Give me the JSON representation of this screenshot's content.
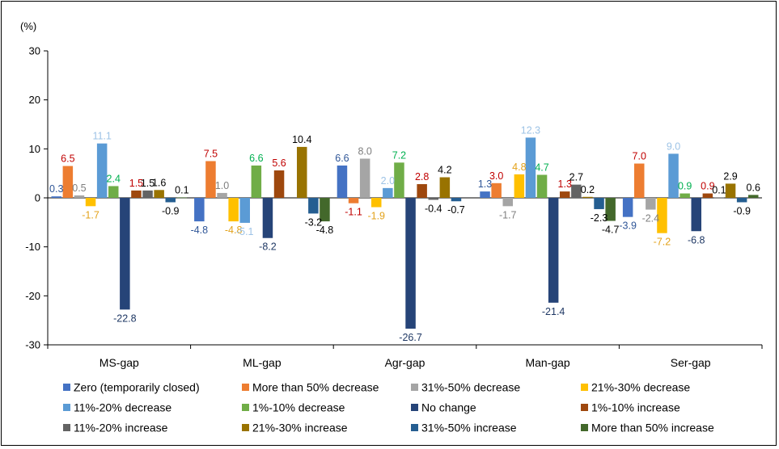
{
  "chart_data": {
    "type": "bar",
    "unit_label": "(%)",
    "ylim": [
      -30,
      30
    ],
    "yticks": [
      30,
      20,
      10,
      0,
      -10,
      -20,
      -30
    ],
    "grid": false,
    "legend_position": "bottom",
    "categories": [
      "MS-gap",
      "ML-gap",
      "Agr-gap",
      "Man-gap",
      "Ser-gap"
    ],
    "series": [
      {
        "name": "Zero (temporarily closed)",
        "color": "#4472C4",
        "values": [
          0.3,
          -4.8,
          6.6,
          1.3,
          -3.9
        ]
      },
      {
        "name": "More than 50% decrease",
        "color": "#ED7D31",
        "values": [
          6.5,
          7.5,
          -1.1,
          3.0,
          7.0
        ]
      },
      {
        "name": "31%-50% decrease",
        "color": "#A5A5A5",
        "values": [
          0.5,
          1.0,
          8.0,
          -1.7,
          -2.4
        ]
      },
      {
        "name": "21%-30% decrease",
        "color": "#FFC000",
        "values": [
          -1.7,
          -4.8,
          -1.9,
          4.8,
          -7.2
        ]
      },
      {
        "name": "11%-20% decrease",
        "color": "#5B9BD5",
        "values": [
          11.1,
          -5.1,
          2.0,
          12.3,
          9.0
        ]
      },
      {
        "name": "1%-10% decrease",
        "color": "#70AD47",
        "values": [
          2.4,
          6.6,
          7.2,
          4.7,
          0.9
        ]
      },
      {
        "name": "No change",
        "color": "#264478",
        "values": [
          -22.8,
          -8.2,
          -26.7,
          -21.4,
          -6.8
        ]
      },
      {
        "name": "1%-10% increase",
        "color": "#9E480E",
        "values": [
          1.5,
          5.6,
          2.8,
          1.3,
          0.9
        ]
      },
      {
        "name": "11%-20% increase",
        "color": "#636363",
        "values": [
          1.5,
          0.0,
          -0.4,
          2.7,
          0.1
        ]
      },
      {
        "name": "21%-30% increase",
        "color": "#997300",
        "values": [
          1.6,
          10.4,
          4.2,
          0.2,
          2.9
        ]
      },
      {
        "name": "31%-50% increase",
        "color": "#255E91",
        "values": [
          -0.9,
          -3.2,
          -0.7,
          -2.3,
          -0.9
        ]
      },
      {
        "name": "More than 50% increase",
        "color": "#43682B",
        "values": [
          0.1,
          -4.8,
          null,
          -4.7,
          0.6
        ]
      }
    ],
    "data_labels": [
      [
        "0.3",
        "6.5",
        "0.5",
        "-1.7",
        "11.1",
        "2.4",
        "-22.8",
        "1.5",
        "1.5",
        "1.6",
        "-0.9",
        "0.1"
      ],
      [
        "-4.8",
        "7.5",
        "1.0",
        "-4.8",
        "-5.1",
        "6.6",
        "-8.2",
        "5.6",
        "",
        "10.4",
        "-3.2",
        "-4.8"
      ],
      [
        "6.6",
        "-1.1",
        "8.0",
        "-1.9",
        "2.0",
        "7.2",
        "-26.7",
        "2.8",
        "-0.4",
        "4.2",
        "-0.7",
        ""
      ],
      [
        "1.3",
        "3.0",
        "-1.7",
        "4.8",
        "12.3",
        "4.7",
        "-21.4",
        "1.3",
        "2.7",
        "0.2",
        "-2.3",
        "-4.7"
      ],
      [
        "-3.9",
        "7.0",
        "-2.4",
        "-7.2",
        "9.0",
        "0.9",
        "-6.8",
        "0.9",
        "0.1",
        "2.9",
        "-0.9",
        "0.6"
      ]
    ],
    "label_colors": [
      "#2E5597",
      "#C00000",
      "#7F7F7F",
      "#E3A21A",
      "#9DC3E6",
      "#00B050",
      "#1F3864",
      "#C00000",
      "#000000",
      "#000000",
      "#000000",
      "#000000"
    ]
  }
}
